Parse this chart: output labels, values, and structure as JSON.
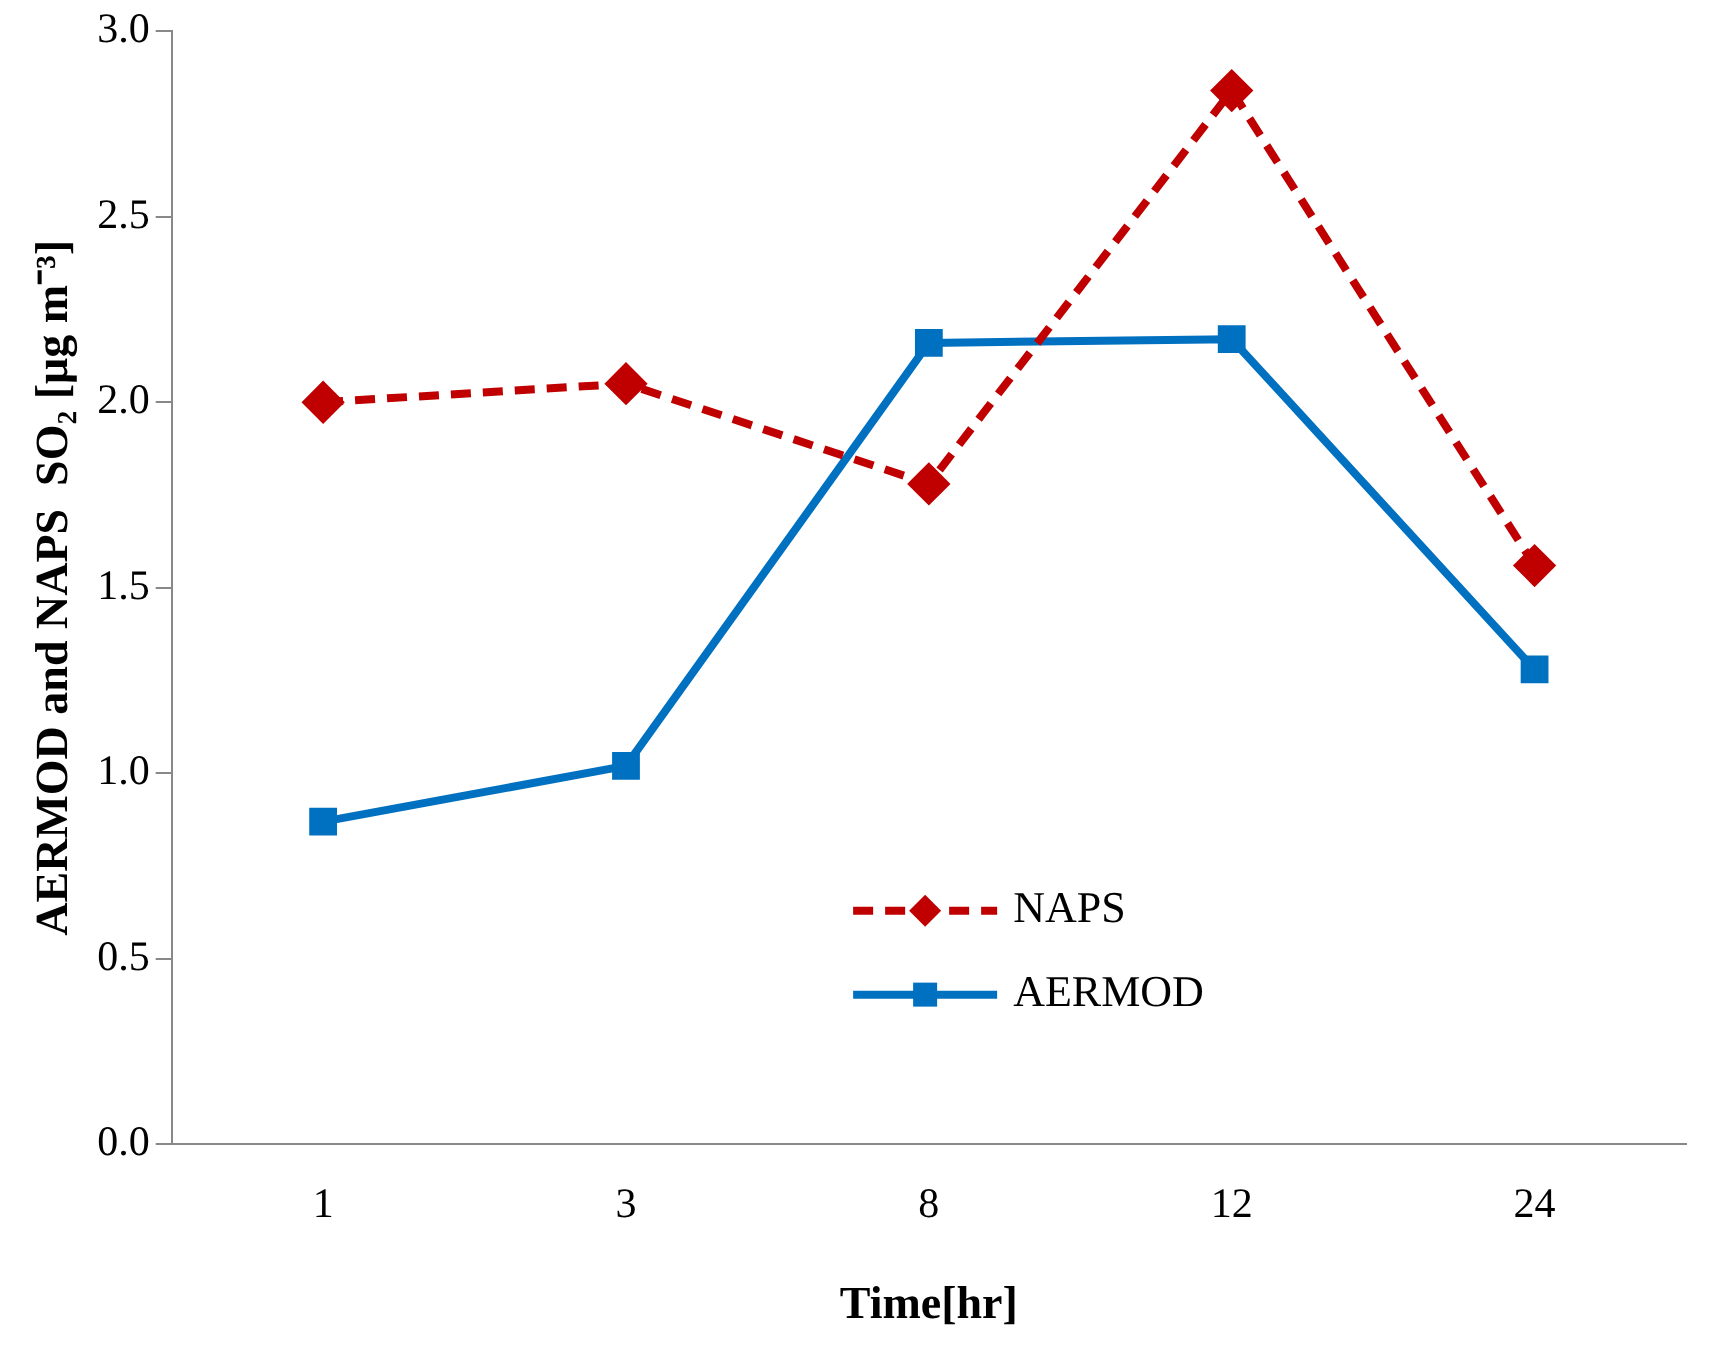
{
  "chart_data": {
    "type": "line",
    "xlabel": "Time[hr]",
    "ylabel": "AERMOD and NAPS  SO₂ [μg m⁻³]",
    "categories": [
      "1",
      "3",
      "8",
      "12",
      "24"
    ],
    "series": [
      {
        "name": "NAPS",
        "color": "#c00000",
        "values": [
          2.0,
          2.05,
          1.78,
          2.84,
          1.56
        ],
        "marker": "diamond",
        "line_style": "dashed"
      },
      {
        "name": "AERMOD",
        "color": "#0070c0",
        "values": [
          0.87,
          1.02,
          2.16,
          2.17,
          1.28
        ],
        "marker": "square",
        "line_style": "solid"
      }
    ],
    "ylim": [
      0,
      3
    ],
    "yticks": [
      {
        "value": 0,
        "label": "0.0"
      },
      {
        "value": 0.5,
        "label": "0.5"
      },
      {
        "value": 1,
        "label": "1.0"
      },
      {
        "value": 1.5,
        "label": "1.5"
      },
      {
        "value": 2,
        "label": "2.0"
      },
      {
        "value": 2.5,
        "label": "2.5"
      },
      {
        "value": 3,
        "label": "3.0"
      }
    ],
    "grid": false,
    "legend": "bottom"
  }
}
